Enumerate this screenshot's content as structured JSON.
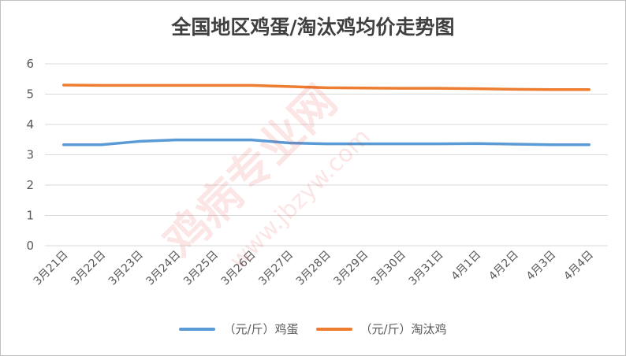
{
  "chart_data": {
    "type": "line",
    "title": "全国地区鸡蛋/淘汰鸡均价走势图",
    "categories": [
      "3月21日",
      "3月22日",
      "3月23日",
      "3月24日",
      "3月25日",
      "3月26日",
      "3月27日",
      "3月28日",
      "3月29日",
      "3月30日",
      "3月31日",
      "4月1日",
      "4月2日",
      "4月3日",
      "4月4日"
    ],
    "yticks": [
      "0",
      "1",
      "2",
      "3",
      "4",
      "5",
      "6"
    ],
    "ylim": [
      0,
      6
    ],
    "grid": true,
    "legend_position": "bottom",
    "series": [
      {
        "name": "（元/斤）鸡蛋",
        "color": "#5b9bd5",
        "values": [
          3.33,
          3.33,
          3.44,
          3.49,
          3.49,
          3.49,
          3.39,
          3.36,
          3.36,
          3.36,
          3.36,
          3.37,
          3.35,
          3.33,
          3.33
        ]
      },
      {
        "name": "（元/斤）淘汰鸡",
        "color": "#ed7d31",
        "values": [
          5.3,
          5.29,
          5.29,
          5.29,
          5.29,
          5.29,
          5.25,
          5.21,
          5.2,
          5.19,
          5.19,
          5.18,
          5.16,
          5.15,
          5.15
        ]
      }
    ]
  },
  "watermark": {
    "text_main": "鸡病专业网",
    "text_url": "www.jbzyw.com"
  }
}
